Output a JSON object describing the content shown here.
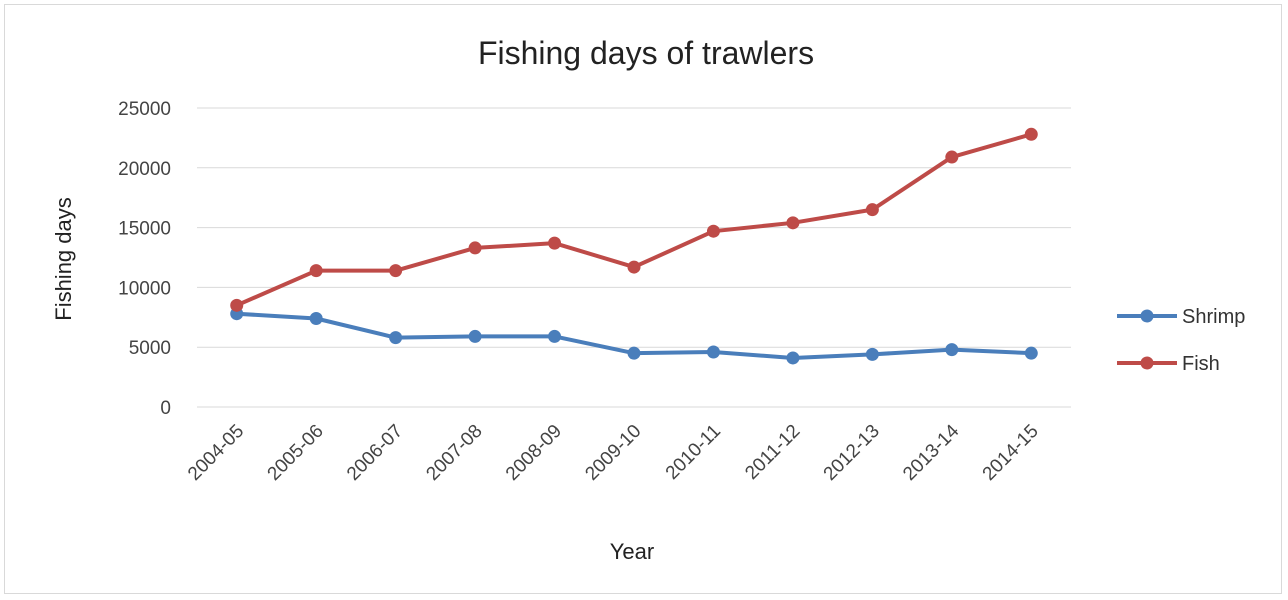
{
  "chart_data": {
    "type": "line",
    "title": "Fishing days of trawlers",
    "xlabel": "Year",
    "ylabel": "Fishing days",
    "categories": [
      "2004-05",
      "2005-06",
      "2006-07",
      "2007-08",
      "2008-09",
      "2009-10",
      "2010-11",
      "2011-12",
      "2012-13",
      "2013-14",
      "2014-15"
    ],
    "ylim": [
      0,
      25000
    ],
    "yticks": [
      0,
      5000,
      10000,
      15000,
      20000,
      25000
    ],
    "grid": true,
    "legend_position": "right",
    "series": [
      {
        "name": "Shrimp",
        "color": "#4a7ebb",
        "values": [
          7800,
          7400,
          5800,
          5900,
          5900,
          4500,
          4600,
          4100,
          4400,
          4800,
          4500
        ]
      },
      {
        "name": "Fish",
        "color": "#be4b48",
        "values": [
          8500,
          11400,
          11400,
          13300,
          13700,
          11700,
          14700,
          15400,
          16500,
          20900,
          22800
        ]
      }
    ]
  }
}
